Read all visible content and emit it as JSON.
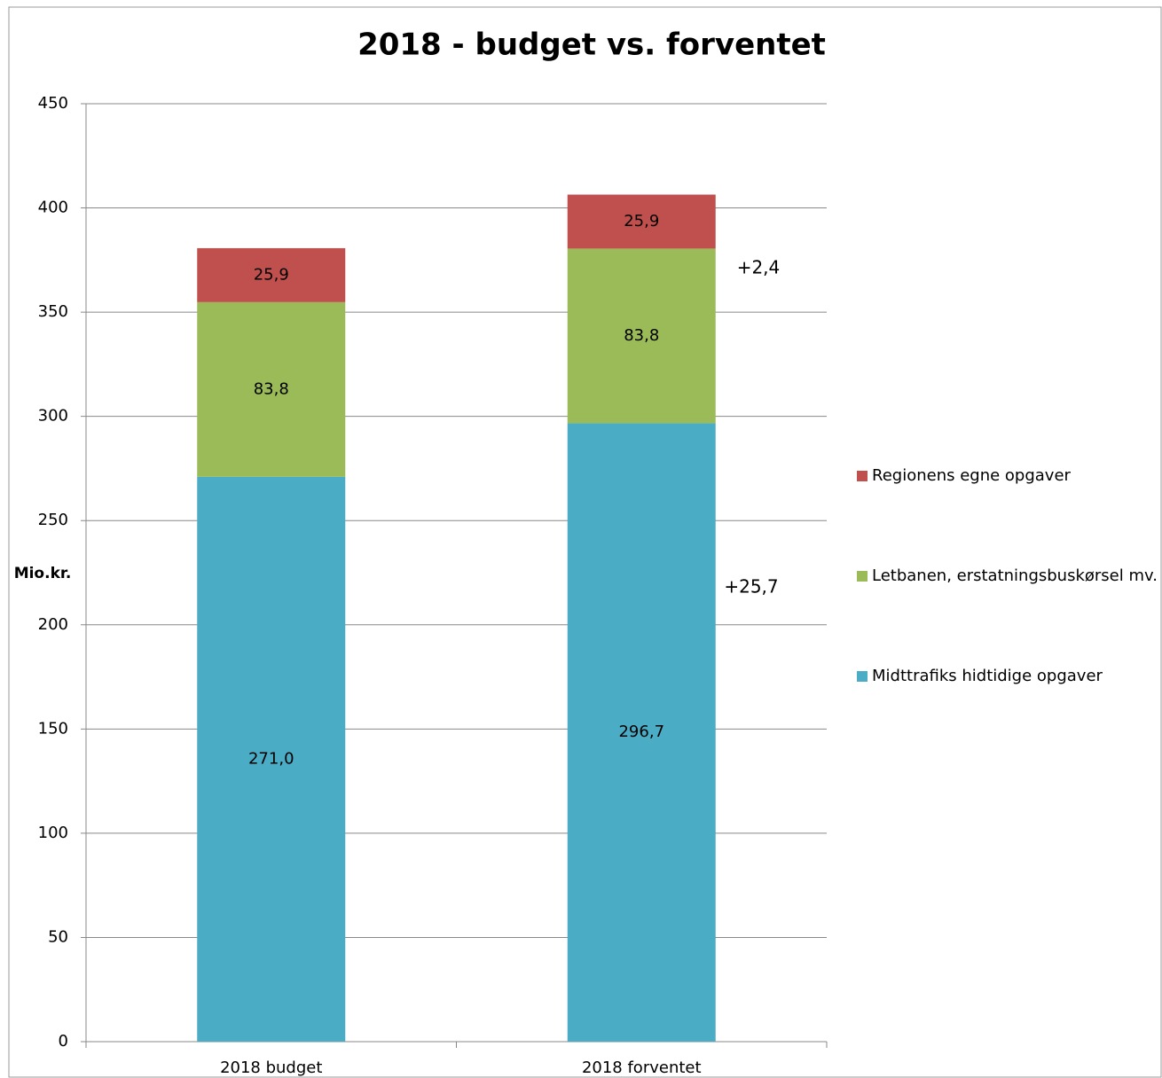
{
  "chart_data": {
    "type": "stacked_bar",
    "title": "2018 - budget vs. forventet",
    "y_label": "Mio.kr.",
    "categories": [
      "2018 budget",
      "2018 forventet"
    ],
    "series": [
      {
        "name": "Midttrafiks hidtidige opgaver",
        "color": "#4bacc6",
        "values": [
          271.0,
          296.7
        ],
        "value_labels": [
          "271,0",
          "296,7"
        ]
      },
      {
        "name": "Letbanen, erstatningsbuskørsel mv.",
        "color": "#9bbb59",
        "values": [
          83.8,
          83.8
        ],
        "value_labels": [
          "83,8",
          "83,8"
        ]
      },
      {
        "name": "Regionens egne opgaver",
        "color": "#c0504d",
        "values": [
          25.9,
          25.9
        ],
        "value_labels": [
          "25,9",
          "25,9"
        ]
      }
    ],
    "annotations": [
      "+2,4",
      "+25,7"
    ],
    "ylim": [
      0,
      450
    ],
    "yticks": [
      0,
      50,
      100,
      150,
      200,
      250,
      300,
      350,
      400,
      450
    ],
    "grid": true,
    "legend": "right"
  }
}
